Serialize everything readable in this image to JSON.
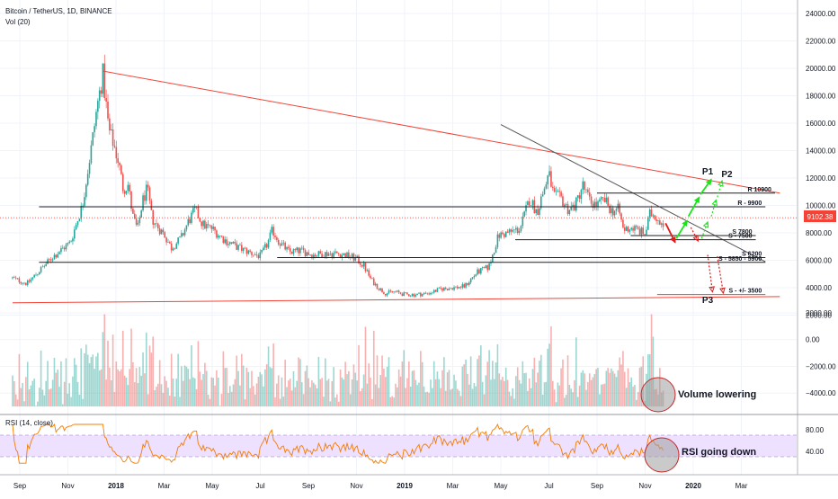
{
  "header": {
    "symbol_line": "Bitcoin / TetherUS, 1D, BINANCE",
    "vol_label": "Vol (20)"
  },
  "chart_data": [
    {
      "type": "candlestick",
      "ylim": [
        2000,
        25000
      ],
      "ticks": [
        {
          "v": 24000,
          "label": "24000.00"
        },
        {
          "v": 22000,
          "label": "22000.00"
        },
        {
          "v": 20000,
          "label": "20000.00"
        },
        {
          "v": 18000,
          "label": "18000.00"
        },
        {
          "v": 16000,
          "label": "16000.00"
        },
        {
          "v": 14000,
          "label": "14000.00"
        },
        {
          "v": 12000,
          "label": "12000.00"
        },
        {
          "v": 10000,
          "label": "10000.00"
        },
        {
          "v": 8000,
          "label": "8000.00"
        },
        {
          "v": 6000,
          "label": "6000.00"
        },
        {
          "v": 4000,
          "label": "4000.00"
        },
        {
          "v": 2000,
          "label": "2000.00"
        }
      ],
      "x_axis": [
        {
          "t": 0,
          "label": "Sep"
        },
        {
          "t": 2,
          "label": "Nov"
        },
        {
          "t": 4,
          "label": "2018"
        },
        {
          "t": 6,
          "label": "Mar"
        },
        {
          "t": 8,
          "label": "May"
        },
        {
          "t": 10,
          "label": "Jul"
        },
        {
          "t": 12,
          "label": "Sep"
        },
        {
          "t": 14,
          "label": "Nov"
        },
        {
          "t": 16,
          "label": "2019"
        },
        {
          "t": 18,
          "label": "Mar"
        },
        {
          "t": 20,
          "label": "May"
        },
        {
          "t": 22,
          "label": "Jul"
        },
        {
          "t": 24,
          "label": "Sep"
        },
        {
          "t": 26,
          "label": "Nov"
        },
        {
          "t": 28,
          "label": "2020"
        },
        {
          "t": 30,
          "label": "Mar"
        }
      ],
      "price_path": [
        [
          -0.3,
          4700
        ],
        [
          0.3,
          4300
        ],
        [
          0.8,
          5200
        ],
        [
          1.4,
          6300
        ],
        [
          2.1,
          7300
        ],
        [
          2.6,
          10000
        ],
        [
          3.0,
          14500
        ],
        [
          3.2,
          17000
        ],
        [
          3.45,
          19600
        ],
        [
          3.7,
          15500
        ],
        [
          3.9,
          14500
        ],
        [
          4.1,
          13200
        ],
        [
          4.3,
          11200
        ],
        [
          4.5,
          11500
        ],
        [
          4.7,
          9200
        ],
        [
          4.9,
          8200
        ],
        [
          5.1,
          10300
        ],
        [
          5.3,
          11200
        ],
        [
          5.5,
          9000
        ],
        [
          5.8,
          8300
        ],
        [
          6.0,
          7900
        ],
        [
          6.3,
          6900
        ],
        [
          6.7,
          7600
        ],
        [
          7.0,
          8800
        ],
        [
          7.3,
          9700
        ],
        [
          7.6,
          8600
        ],
        [
          8.0,
          8300
        ],
        [
          8.5,
          7500
        ],
        [
          9.0,
          7000
        ],
        [
          9.5,
          6600
        ],
        [
          10.0,
          6300
        ],
        [
          10.3,
          7200
        ],
        [
          10.5,
          8200
        ],
        [
          10.8,
          7300
        ],
        [
          11.2,
          6600
        ],
        [
          11.7,
          6700
        ],
        [
          12.2,
          6400
        ],
        [
          12.7,
          6500
        ],
        [
          13.2,
          6500
        ],
        [
          13.7,
          6300
        ],
        [
          14.0,
          6100
        ],
        [
          14.3,
          5600
        ],
        [
          14.6,
          4600
        ],
        [
          14.9,
          4000
        ],
        [
          15.2,
          3600
        ],
        [
          15.6,
          3700
        ],
        [
          16.0,
          3500
        ],
        [
          16.5,
          3500
        ],
        [
          17.0,
          3600
        ],
        [
          17.5,
          3900
        ],
        [
          18.0,
          4000
        ],
        [
          18.5,
          4100
        ],
        [
          19.0,
          5100
        ],
        [
          19.5,
          5500
        ],
        [
          19.9,
          7800
        ],
        [
          20.3,
          8000
        ],
        [
          20.8,
          8300
        ],
        [
          21.2,
          10500
        ],
        [
          21.5,
          9500
        ],
        [
          21.8,
          11200
        ],
        [
          22.0,
          12300
        ],
        [
          22.2,
          10700
        ],
        [
          22.5,
          10500
        ],
        [
          22.8,
          9700
        ],
        [
          23.1,
          10000
        ],
        [
          23.4,
          11500
        ],
        [
          23.7,
          10300
        ],
        [
          24.0,
          10000
        ],
        [
          24.3,
          10400
        ],
        [
          24.6,
          9600
        ],
        [
          24.9,
          9700
        ],
        [
          25.1,
          8200
        ],
        [
          25.4,
          8400
        ],
        [
          25.7,
          8200
        ],
        [
          26.0,
          7900
        ],
        [
          26.2,
          9400
        ],
        [
          26.4,
          9300
        ],
        [
          26.6,
          8900
        ],
        [
          26.75,
          8800
        ]
      ],
      "price_line": {
        "value": 9102.38,
        "label": "9102.38"
      },
      "trendlines": [
        {
          "kind": "diagonal",
          "from": [
            -0.3,
            2900
          ],
          "to": [
            31.6,
            3350
          ],
          "color": "#f44336"
        },
        {
          "kind": "diagonal",
          "from": [
            3.45,
            19800
          ],
          "to": [
            31.6,
            10900
          ],
          "color": "#f44336"
        },
        {
          "kind": "diagonal",
          "from": [
            20.0,
            15900
          ],
          "to": [
            31.0,
            5900
          ],
          "color": "#555555"
        }
      ],
      "levels": [
        {
          "value": 10900,
          "from_t": 24.0,
          "to_t": 31.4,
          "label": "R 10900"
        },
        {
          "value": 9900,
          "from_t": 0.8,
          "to_t": 31.0,
          "label": "R - 9900"
        },
        {
          "value": 7800,
          "from_t": 25.4,
          "to_t": 30.6,
          "label": "S 7800"
        },
        {
          "value": 7500,
          "from_t": 20.6,
          "to_t": 30.6,
          "label": "S - 7500"
        },
        {
          "value": 6200,
          "from_t": 10.7,
          "to_t": 31.0,
          "label": "S 6200"
        },
        {
          "value": 5850,
          "from_t": 0.8,
          "to_t": 31.0,
          "label": "S - 5850 - 5900"
        },
        {
          "value": 3500,
          "from_t": 26.5,
          "to_t": 31.0,
          "label": "S - +/- 3500"
        }
      ],
      "arrows": [
        {
          "from": [
            26.85,
            8700
          ],
          "to": [
            27.25,
            7300
          ],
          "color": "#e21a1a",
          "dashed": false
        },
        {
          "from": [
            27.3,
            7600
          ],
          "to": [
            27.75,
            8900
          ],
          "color": "#19e619",
          "dashed": false
        },
        {
          "from": [
            27.8,
            9200
          ],
          "to": [
            28.25,
            10600
          ],
          "color": "#19e619",
          "dashed": false
        },
        {
          "from": [
            28.3,
            10800
          ],
          "to": [
            28.75,
            11900
          ],
          "color": "#19e619",
          "dashed": false
        },
        {
          "from": [
            27.9,
            8400
          ],
          "to": [
            28.2,
            7400
          ],
          "color": "#e21a1a",
          "dashed": true
        },
        {
          "from": [
            28.35,
            7600
          ],
          "to": [
            28.6,
            8800
          ],
          "color": "#19e619",
          "dashed": true
        },
        {
          "from": [
            28.75,
            9200
          ],
          "to": [
            28.95,
            10400
          ],
          "color": "#19e619",
          "dashed": true
        },
        {
          "from": [
            29.0,
            10600
          ],
          "to": [
            29.2,
            11800
          ],
          "color": "#19e619",
          "dashed": true
        },
        {
          "from": [
            28.6,
            6400
          ],
          "to": [
            28.8,
            3700
          ],
          "color": "#e21a1a",
          "dashed": true
        },
        {
          "from": [
            29.0,
            6300
          ],
          "to": [
            29.25,
            3600
          ],
          "color": "#e21a1a",
          "dashed": true
        }
      ],
      "markers": [
        {
          "label": "P1",
          "at": [
            28.6,
            12250
          ]
        },
        {
          "label": "P2",
          "at": [
            29.4,
            12050
          ]
        },
        {
          "label": "P3",
          "at": [
            28.6,
            2900
          ]
        }
      ]
    },
    {
      "type": "bar",
      "name": "Volume",
      "ticks": [
        {
          "v": 2000,
          "label": "2000.00"
        },
        {
          "v": 0,
          "label": "0.00"
        },
        {
          "v": -2000,
          "label": "−2000.00"
        },
        {
          "v": -4000,
          "label": "−4000.00"
        }
      ],
      "annotation": "Volume lowering"
    },
    {
      "type": "line",
      "name": "RSI",
      "label": "RSI (14, close)",
      "band": [
        30,
        70
      ],
      "ticks": [
        {
          "v": 80,
          "label": "80.00"
        },
        {
          "v": 40,
          "label": "40.00"
        }
      ],
      "annotation": "RSI going down"
    }
  ],
  "colors": {
    "up": "#26a69a",
    "down": "#ef5350",
    "rsi_line": "#f57c00",
    "rsi_band": "#eee0ff",
    "price_label_bg": "#f44336"
  }
}
